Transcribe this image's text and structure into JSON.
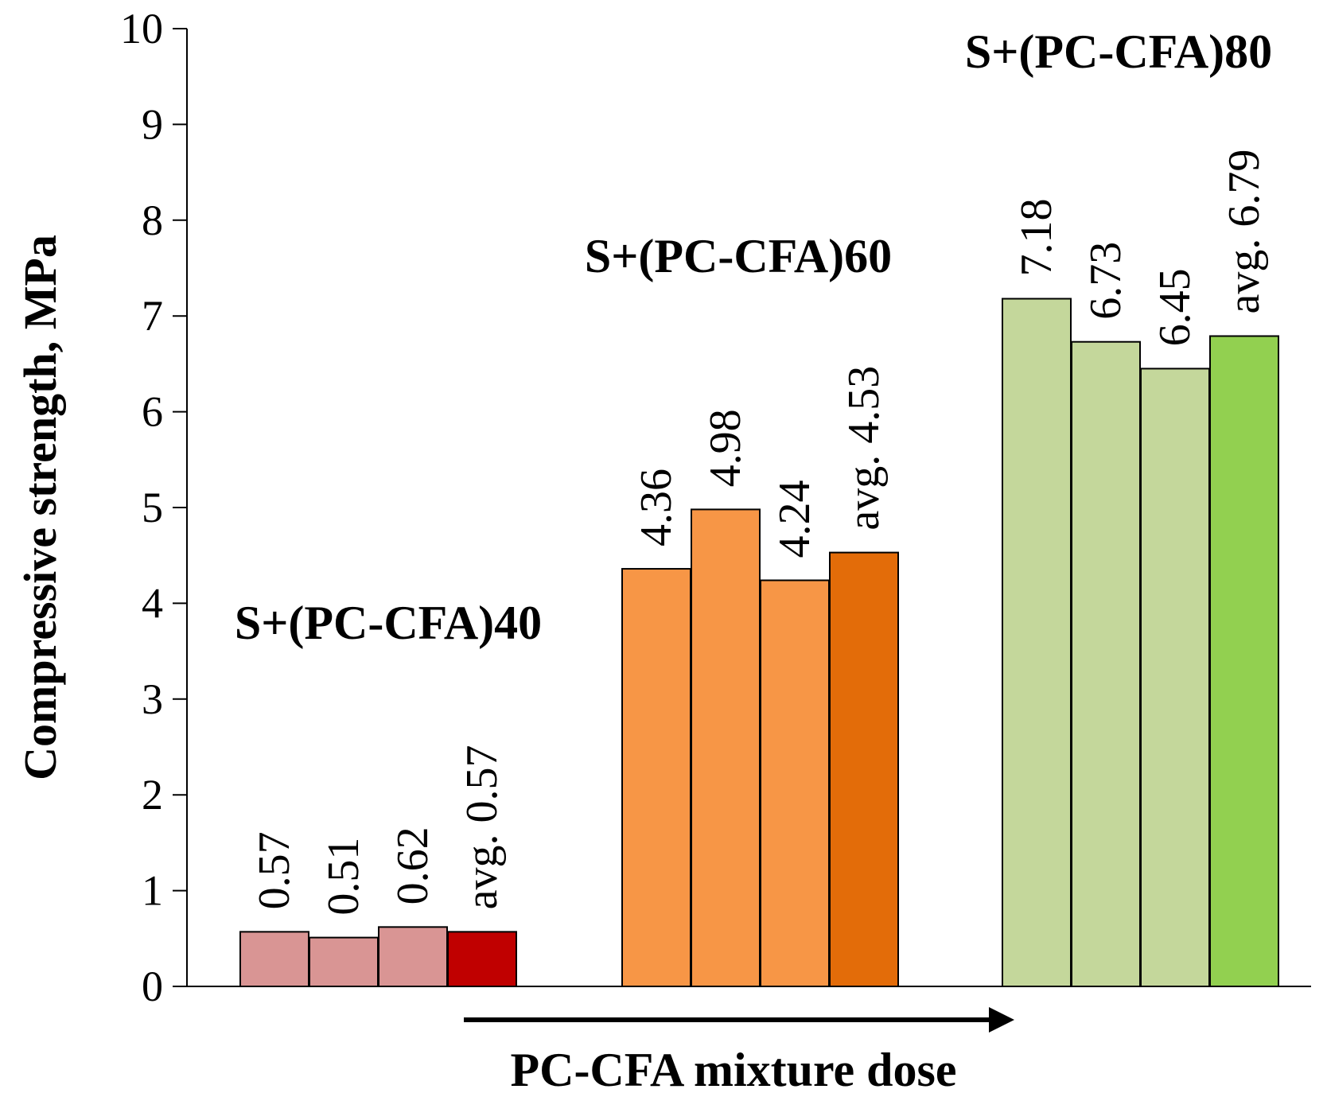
{
  "chart_data": {
    "type": "bar",
    "ylabel": "Compressive strength, MPa",
    "xlabel": "PC-CFA mixture dose",
    "ylim": [
      0,
      10
    ],
    "yticks": [
      0,
      1,
      2,
      3,
      4,
      5,
      6,
      7,
      8,
      9,
      10
    ],
    "grid": false,
    "groups": [
      {
        "name": "S+(PC-CFA)40",
        "bars": [
          {
            "label": "0.57",
            "value": 0.57,
            "color": "#d99594"
          },
          {
            "label": "0.51",
            "value": 0.51,
            "color": "#d99594"
          },
          {
            "label": "0.62",
            "value": 0.62,
            "color": "#d99594"
          },
          {
            "label": "avg.  0.57",
            "value": 0.57,
            "color": "#c00000"
          }
        ]
      },
      {
        "name": "S+(PC-CFA)60",
        "bars": [
          {
            "label": "4.36",
            "value": 4.36,
            "color": "#f79646"
          },
          {
            "label": "4.98",
            "value": 4.98,
            "color": "#f79646"
          },
          {
            "label": "4.24",
            "value": 4.24,
            "color": "#f79646"
          },
          {
            "label": "avg.  4.53",
            "value": 4.53,
            "color": "#e36c09"
          }
        ]
      },
      {
        "name": "S+(PC-CFA)80",
        "bars": [
          {
            "label": "7.18",
            "value": 7.18,
            "color": "#c4d79b"
          },
          {
            "label": "6.73",
            "value": 6.73,
            "color": "#c4d79b"
          },
          {
            "label": "6.45",
            "value": 6.45,
            "color": "#c4d79b"
          },
          {
            "label": "avg.  6.79",
            "value": 6.79,
            "color": "#92d050"
          }
        ]
      }
    ]
  }
}
